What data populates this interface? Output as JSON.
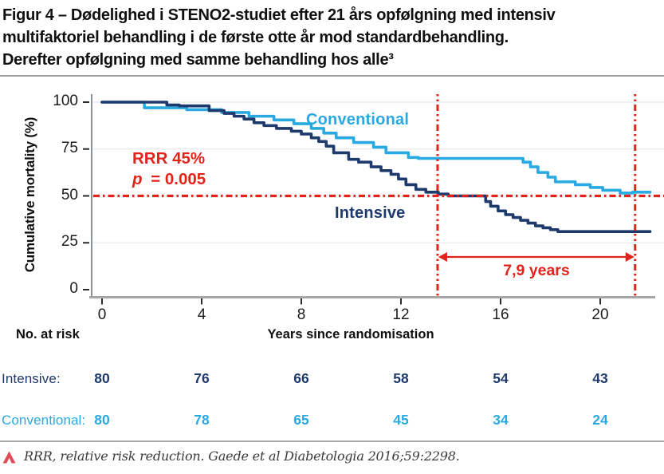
{
  "title": {
    "lines": [
      "Figur 4 – Dødelighed i STENO2-studiet efter 21 års opfølgning med intensiv",
      "multifaktoriel behandling i de første otte år mod standardbehandling.",
      "Derefter opfølgning med samme behandling hos alle³"
    ]
  },
  "chart_data": {
    "type": "line",
    "subtype": "kaplan-meier-step",
    "title": "",
    "xlabel": "Years since randomisation",
    "ylabel": "Cumulative mortality (%)",
    "xlim": [
      0,
      22
    ],
    "ylim": [
      0,
      100
    ],
    "xticks": [
      0,
      4,
      8,
      12,
      16,
      20
    ],
    "yticks": [
      0,
      25,
      50,
      75,
      100
    ],
    "grid": true,
    "colors": {
      "conventional": "#29a9e1",
      "intensive": "#1e3a6d",
      "annotation_red": "#e2231a"
    },
    "series": [
      {
        "name": "Conventional",
        "color": "#29a9e1",
        "end_x": 22.0,
        "step_points": [
          [
            0,
            100
          ],
          [
            1.7,
            97
          ],
          [
            3.4,
            96
          ],
          [
            4.8,
            94.5
          ],
          [
            5.9,
            92.5
          ],
          [
            6.9,
            90.5
          ],
          [
            7.7,
            88.5
          ],
          [
            8.4,
            86
          ],
          [
            8.9,
            83.5
          ],
          [
            9.4,
            81
          ],
          [
            10.1,
            78.5
          ],
          [
            10.9,
            76
          ],
          [
            11.4,
            73
          ],
          [
            12.3,
            70.5
          ],
          [
            12.7,
            70
          ],
          [
            16.9,
            68
          ],
          [
            17.2,
            65.5
          ],
          [
            17.5,
            62.5
          ],
          [
            17.9,
            60
          ],
          [
            18.2,
            57.5
          ],
          [
            19.0,
            56
          ],
          [
            19.6,
            54.5
          ],
          [
            20.1,
            53
          ],
          [
            20.8,
            51.5
          ],
          [
            21.3,
            52
          ]
        ]
      },
      {
        "name": "Intensive",
        "color": "#1e3a6d",
        "end_x": 22.0,
        "step_points": [
          [
            0,
            100
          ],
          [
            2.6,
            98.5
          ],
          [
            3.1,
            98
          ],
          [
            4.3,
            95.5
          ],
          [
            4.9,
            94
          ],
          [
            5.3,
            92.5
          ],
          [
            5.7,
            91
          ],
          [
            6.1,
            89
          ],
          [
            6.5,
            87.5
          ],
          [
            7.0,
            86
          ],
          [
            7.6,
            84.5
          ],
          [
            8.0,
            83
          ],
          [
            8.4,
            81
          ],
          [
            8.7,
            79
          ],
          [
            9.0,
            76.5
          ],
          [
            9.3,
            73
          ],
          [
            9.9,
            69.5
          ],
          [
            10.3,
            68
          ],
          [
            10.8,
            65.5
          ],
          [
            11.2,
            63.5
          ],
          [
            11.6,
            61.5
          ],
          [
            11.9,
            59
          ],
          [
            12.2,
            56
          ],
          [
            12.6,
            53.5
          ],
          [
            13.0,
            52
          ],
          [
            13.5,
            51
          ],
          [
            13.9,
            50
          ],
          [
            15.4,
            47
          ],
          [
            15.6,
            44.5
          ],
          [
            15.9,
            42
          ],
          [
            16.2,
            40
          ],
          [
            16.5,
            38.5
          ],
          [
            16.8,
            37
          ],
          [
            17.1,
            35.5
          ],
          [
            17.4,
            34
          ],
          [
            17.7,
            33
          ],
          [
            18.0,
            32
          ],
          [
            18.3,
            31
          ]
        ]
      }
    ],
    "annotations": {
      "rrr": "RRR 45%",
      "p_symbol": "p",
      "p_value": "= 0.005",
      "reference_line_y": 50,
      "vline1_x": 13.47,
      "vline2_x": 21.4,
      "arrow_label": "7,9 years"
    }
  },
  "risk_table": {
    "heading": "No. at risk",
    "rows": [
      {
        "label": "Intensive:",
        "color": "#1e3a6d",
        "values": [
          "80",
          "76",
          "66",
          "58",
          "54",
          "43"
        ]
      },
      {
        "label": "Conventional:",
        "color": "#29a9e1",
        "values": [
          "80",
          "78",
          "65",
          "45",
          "34",
          "24"
        ]
      }
    ]
  },
  "footer": {
    "marker": "caret-up",
    "text": "RRR, relative risk reduction. Gaede et al Diabetologia 2016;59:2298."
  }
}
